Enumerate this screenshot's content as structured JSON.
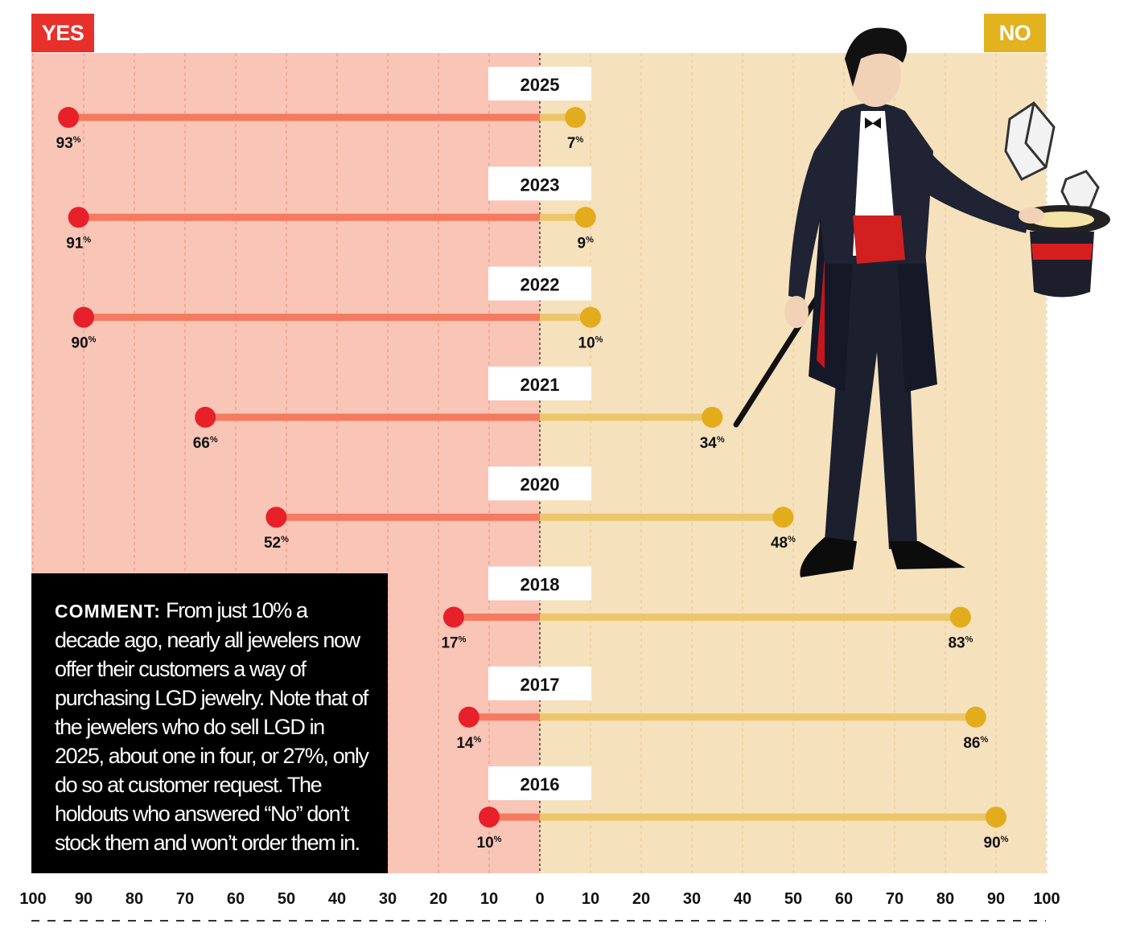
{
  "labels": {
    "yes": "YES",
    "no": "NO"
  },
  "comment": {
    "label": "COMMENT:",
    "text": "From just 10% a decade ago, nearly all jewelers now offer their customers a way of purchasing LGD jewelry. Note that of the jewelers who do sell LGD in 2025, about one in four, or 27%, only do so at customer request. The holdouts who answered “No” don’t stock them and won’t order them in."
  },
  "illustration": {
    "icon": "magician-with-top-hat-and-diamonds-icon"
  },
  "colors": {
    "yes_bg": "#f9c5b6",
    "no_bg": "#f6e1bd",
    "yes_line": "#f47b5f",
    "no_line": "#ecc66a",
    "yes_dot": "#e8202a",
    "no_dot": "#e2ac1c",
    "yes_tag": "#e8302a",
    "no_tag": "#e2b21f"
  },
  "chart_data": {
    "type": "diverging-dot-bar",
    "xlabel_left": "YES",
    "xlabel_right": "NO",
    "axis_ticks": [
      "100",
      "90",
      "80",
      "70",
      "60",
      "50",
      "40",
      "30",
      "20",
      "10",
      "0",
      "10",
      "20",
      "30",
      "40",
      "50",
      "60",
      "70",
      "80",
      "90",
      "100"
    ],
    "xlim": [
      -100,
      100
    ],
    "unit": "%",
    "series": [
      {
        "year": "2025",
        "yes": 93,
        "no": 7
      },
      {
        "year": "2023",
        "yes": 91,
        "no": 9
      },
      {
        "year": "2022",
        "yes": 90,
        "no": 10
      },
      {
        "year": "2021",
        "yes": 66,
        "no": 34
      },
      {
        "year": "2020",
        "yes": 52,
        "no": 48
      },
      {
        "year": "2018",
        "yes": 17,
        "no": 83
      },
      {
        "year": "2017",
        "yes": 14,
        "no": 86
      },
      {
        "year": "2016",
        "yes": 10,
        "no": 90
      }
    ]
  }
}
